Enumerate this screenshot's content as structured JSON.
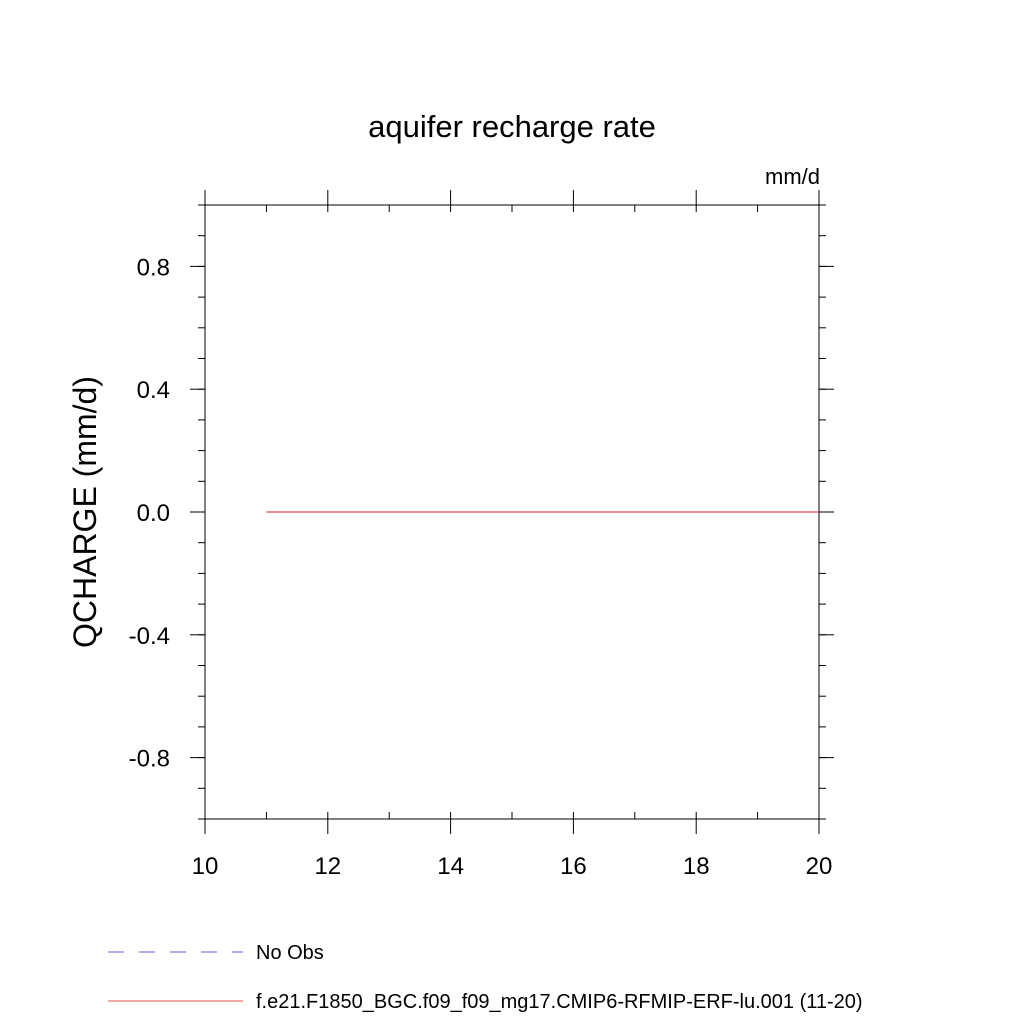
{
  "chart_data": {
    "type": "line",
    "title": "aquifer recharge rate",
    "units": "mm/d",
    "ylabel": "QCHARGE  (mm/d)",
    "xlabel": "",
    "xlim": [
      10,
      20
    ],
    "ylim": [
      -1.0,
      1.0
    ],
    "x_major_ticks": [
      10,
      12,
      14,
      16,
      18,
      20
    ],
    "x_minor_step": 1,
    "y_major_ticks": [
      -0.8,
      -0.4,
      0.0,
      0.4,
      0.8
    ],
    "y_tick_labels": [
      "-0.8",
      "-0.4",
      "0.0",
      "0.4",
      "0.8"
    ],
    "y_minor_step": 0.1,
    "grid": false,
    "legend_position": "bottom",
    "series": [
      {
        "name": "f.e21.F1850_BGC.f09_f09_mg17.CMIP6-RFMIP-ERF-lu.001 (11-20)",
        "color": "#e8504e",
        "dash": "solid",
        "x": [
          11,
          12,
          13,
          14,
          15,
          16,
          17,
          18,
          19,
          20
        ],
        "y": [
          0,
          0,
          0,
          0,
          0,
          0,
          0,
          0,
          0,
          0
        ]
      }
    ],
    "legend": [
      {
        "label": "No Obs",
        "color": "#6a5acd",
        "dash": "dashed"
      },
      {
        "label": "f.e21.F1850_BGC.f09_f09_mg17.CMIP6-RFMIP-ERF-lu.001 (11-20)",
        "color": "#e8504e",
        "dash": "solid"
      }
    ]
  }
}
